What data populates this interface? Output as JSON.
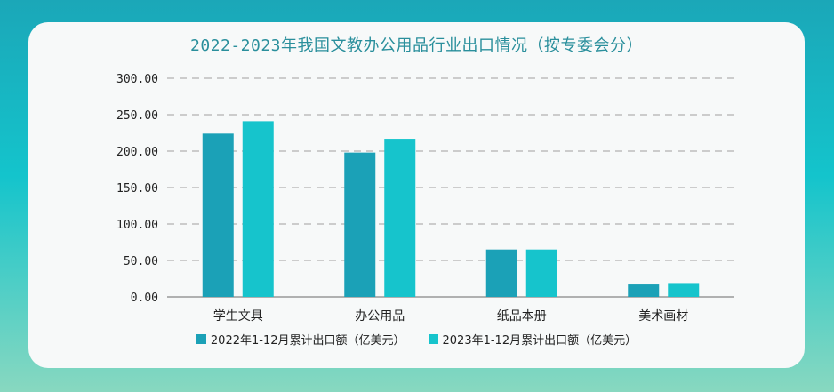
{
  "chart_data": {
    "type": "bar",
    "title": "2022-2023年我国文教办公用品行业出口情况（按专委会分）",
    "categories": [
      "学生文具",
      "办公用品",
      "纸品本册",
      "美术画材"
    ],
    "series": [
      {
        "name": "2022年1-12月累计出口额（亿美元）",
        "values": [
          224,
          198,
          65,
          17
        ],
        "color": "#1ba1b7"
      },
      {
        "name": "2023年1-12月累计出口额（亿美元）",
        "values": [
          241,
          217,
          65,
          19
        ],
        "color": "#16c4cc"
      }
    ],
    "yticks": [
      "0.00",
      "50.00",
      "100.00",
      "150.00",
      "200.00",
      "250.00",
      "300.00"
    ],
    "ylim": [
      0,
      300
    ],
    "grid": true,
    "legend_position": "bottom"
  }
}
